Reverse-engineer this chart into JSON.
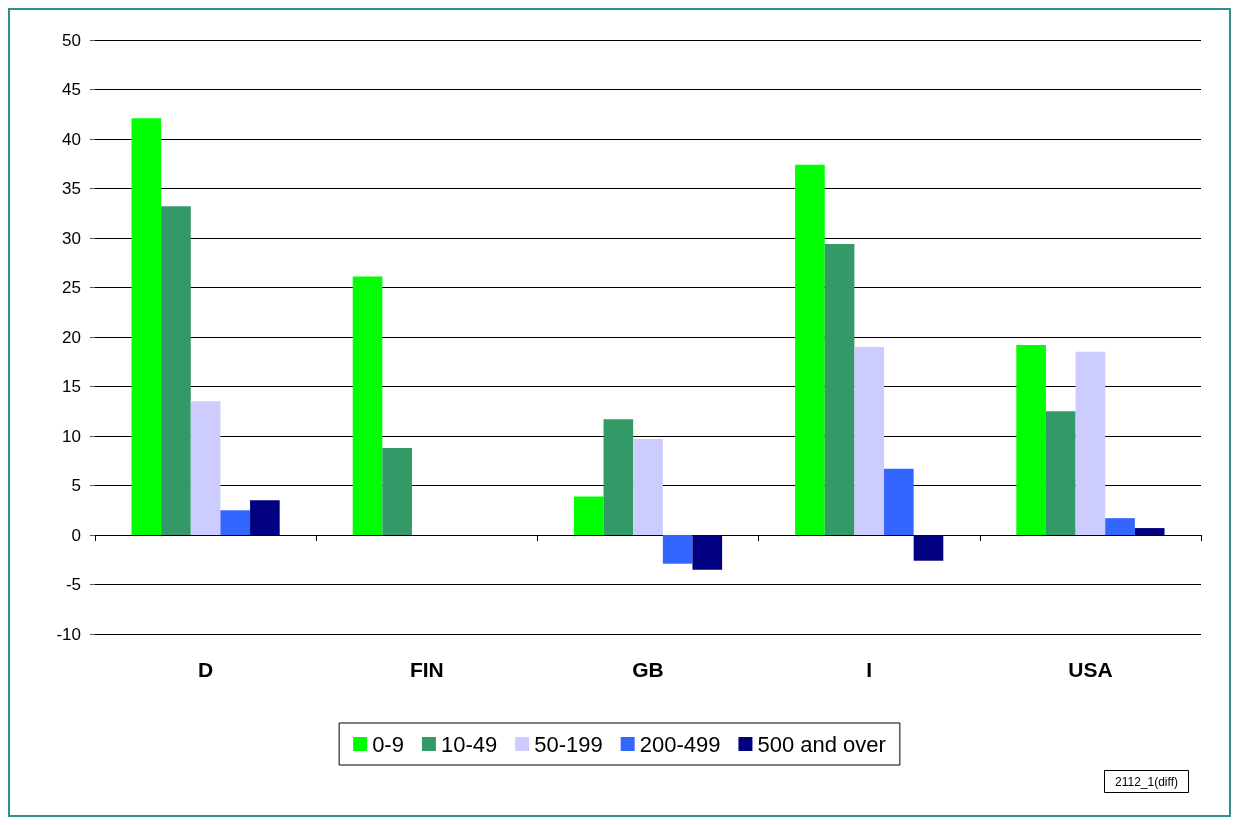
{
  "chart_data": {
    "type": "bar",
    "categories": [
      "D",
      "FIN",
      "GB",
      "I",
      "USA"
    ],
    "series": [
      {
        "name": "0-9",
        "color": "#00ff00",
        "values": [
          42.1,
          26.1,
          3.9,
          37.4,
          19.2
        ]
      },
      {
        "name": "10-49",
        "color": "#339966",
        "values": [
          33.2,
          8.8,
          11.7,
          29.4,
          12.5
        ]
      },
      {
        "name": "50-199",
        "color": "#ccccff",
        "values": [
          13.5,
          null,
          9.7,
          19.0,
          18.5
        ]
      },
      {
        "name": "200-499",
        "color": "#3366ff",
        "values": [
          2.5,
          null,
          -2.9,
          6.7,
          1.7
        ]
      },
      {
        "name": "500 and over",
        "color": "#000080",
        "values": [
          3.5,
          null,
          -3.5,
          -2.6,
          0.7
        ]
      }
    ],
    "ylim": [
      -10,
      50
    ],
    "yticks": [
      -10,
      -5,
      0,
      5,
      10,
      15,
      20,
      25,
      30,
      35,
      40,
      45,
      50
    ],
    "grid": "y",
    "legend": "bottom",
    "annotations": [
      "2112_1(diff)"
    ]
  }
}
